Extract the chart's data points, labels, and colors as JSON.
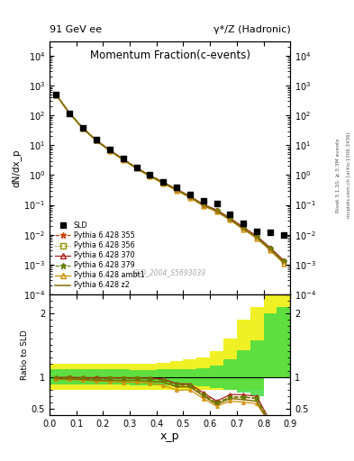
{
  "title_top": "91 GeV ee",
  "title_top_right": "γ*/Z (Hadronic)",
  "title_main": "Momentum Fraction",
  "title_main_sub": "(c-events)",
  "ylabel_main": "dN/dx_p",
  "ylabel_ratio": "Ratio to SLD",
  "xlabel": "x_p",
  "watermark": "SLD_2004_S5693039",
  "right_label": "Rivet 3.1.10, ≥ 3.3M events",
  "right_label2": "mcplots.cern.ch [arXiv:1306.3436]",
  "sld_x": [
    0.025,
    0.075,
    0.125,
    0.175,
    0.225,
    0.275,
    0.325,
    0.375,
    0.425,
    0.475,
    0.525,
    0.575,
    0.625,
    0.675,
    0.725,
    0.775,
    0.825,
    0.875
  ],
  "sld_y": [
    500,
    120,
    38,
    15,
    7.0,
    3.5,
    1.8,
    1.0,
    0.6,
    0.38,
    0.22,
    0.14,
    0.11,
    0.05,
    0.025,
    0.013,
    0.0125,
    0.0095
  ],
  "mc_x": [
    0.025,
    0.075,
    0.125,
    0.175,
    0.225,
    0.275,
    0.325,
    0.375,
    0.425,
    0.475,
    0.525,
    0.575,
    0.625,
    0.675,
    0.725,
    0.775,
    0.825,
    0.875
  ],
  "py355_y": [
    490,
    118,
    37,
    14.5,
    6.8,
    3.4,
    1.75,
    0.97,
    0.57,
    0.33,
    0.19,
    0.1,
    0.065,
    0.034,
    0.017,
    0.0085,
    0.0035,
    0.0013
  ],
  "py356_y": [
    492,
    119,
    37.2,
    14.6,
    6.82,
    3.42,
    1.76,
    0.97,
    0.57,
    0.335,
    0.192,
    0.101,
    0.066,
    0.034,
    0.0172,
    0.0086,
    0.0035,
    0.0013
  ],
  "py370_y": [
    495,
    119,
    37.5,
    14.8,
    6.9,
    3.45,
    1.77,
    0.98,
    0.58,
    0.34,
    0.195,
    0.105,
    0.068,
    0.036,
    0.018,
    0.009,
    0.0037,
    0.0014
  ],
  "py379_y": [
    491,
    118,
    37.1,
    14.5,
    6.81,
    3.41,
    1.76,
    0.97,
    0.57,
    0.332,
    0.191,
    0.101,
    0.065,
    0.034,
    0.0171,
    0.0086,
    0.0035,
    0.0013
  ],
  "pyambt1_y": [
    480,
    115,
    36,
    14.0,
    6.5,
    3.2,
    1.65,
    0.9,
    0.52,
    0.3,
    0.175,
    0.092,
    0.059,
    0.031,
    0.015,
    0.0075,
    0.003,
    0.0011
  ],
  "pyz2_y": [
    485,
    116,
    36.5,
    14.2,
    6.6,
    3.3,
    1.7,
    0.93,
    0.55,
    0.32,
    0.185,
    0.098,
    0.062,
    0.033,
    0.016,
    0.008,
    0.0032,
    0.0012
  ],
  "color_355": "#d04000",
  "color_356": "#909000",
  "color_370": "#b02020",
  "color_379": "#608000",
  "color_ambt1": "#d09000",
  "color_z2": "#807000",
  "xlim": [
    0.0,
    0.9
  ],
  "ylim_main": [
    0.0001,
    30000
  ],
  "ylim_ratio": [
    0.4,
    2.3
  ],
  "ratio_yticks": [
    0.5,
    1.0,
    2.0
  ],
  "ratio_yticklabels": [
    "0.5",
    "1",
    "2"
  ]
}
